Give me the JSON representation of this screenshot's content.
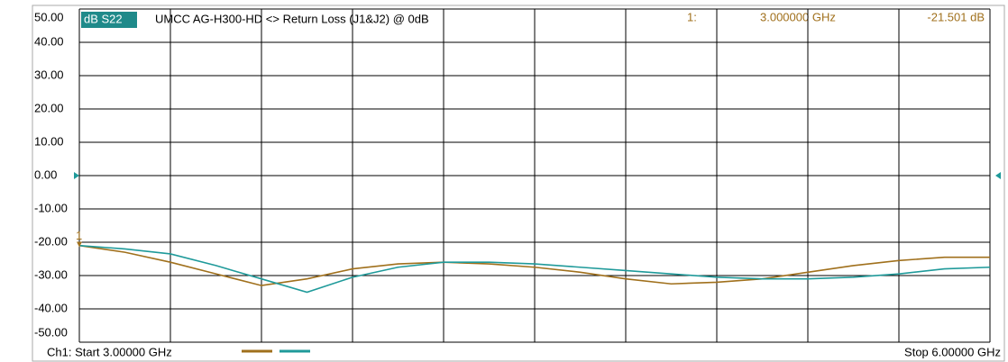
{
  "chart_data": {
    "type": "line",
    "trace_label": "dB S22",
    "title": "UMCC AG-H300-HD <> Return Loss (J1&J2) @ 0dB",
    "marker": {
      "label": "1",
      "index_text": "1:",
      "x": 3,
      "value": -21.501,
      "x_text": "3.000000 GHz",
      "value_text": "-21.501 dB",
      "color": "#a0701c"
    },
    "start_text": "Ch1: Start 3.00000 GHz",
    "stop_text": "Stop 6.00000 GHz",
    "reference_level": 0,
    "reference_color": "#1f9a9a",
    "x": [
      3.0,
      3.15,
      3.3,
      3.45,
      3.6,
      3.75,
      3.9,
      4.05,
      4.2,
      4.35,
      4.5,
      4.65,
      4.8,
      4.95,
      5.1,
      5.25,
      5.4,
      5.55,
      5.7,
      5.85,
      6.0
    ],
    "xlim": [
      3,
      6
    ],
    "series": [
      {
        "color": "#a0701c",
        "values": [
          -21,
          -23,
          -26,
          -29.5,
          -33,
          -31,
          -28,
          -26.5,
          -26,
          -26.5,
          -27.5,
          -29,
          -31,
          -32.5,
          -32,
          -31,
          -29,
          -27,
          -25.5,
          -24.5,
          -24.5
        ]
      },
      {
        "color": "#1f9a9a",
        "values": [
          -21,
          -22,
          -23.5,
          -27,
          -31,
          -35,
          -30.5,
          -27.5,
          -26,
          -26,
          -26.5,
          -27.5,
          -28.5,
          -29.5,
          -30.5,
          -31,
          -31,
          -30.5,
          -29.5,
          -28,
          -27.5
        ]
      }
    ],
    "ylim": [
      -50,
      50
    ],
    "yticks": [
      {
        "value": 50,
        "label": "50.00"
      },
      {
        "value": 40,
        "label": "40.00"
      },
      {
        "value": 30,
        "label": "30.00"
      },
      {
        "value": 20,
        "label": "20.00"
      },
      {
        "value": 10,
        "label": "10.00"
      },
      {
        "value": 0,
        "label": "0.00"
      },
      {
        "value": -10,
        "label": "-10.00"
      },
      {
        "value": -20,
        "label": "-20.00"
      },
      {
        "value": -30,
        "label": "-30.00"
      },
      {
        "value": -40,
        "label": "-40.00"
      },
      {
        "value": -50,
        "label": "-50.00"
      }
    ],
    "grid": true
  }
}
